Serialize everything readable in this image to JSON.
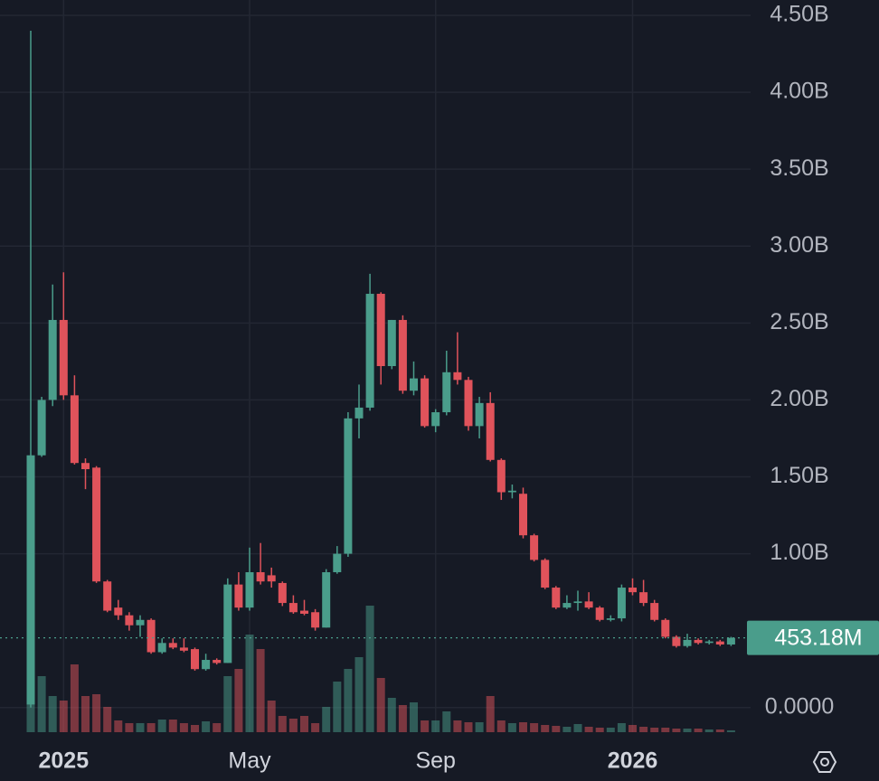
{
  "chart_data": {
    "type": "candlestick",
    "categories": [
      null,
      null,
      null,
      "2025",
      null,
      null,
      null,
      null,
      null,
      null,
      null,
      null,
      null,
      null,
      null,
      null,
      null,
      null,
      null,
      null,
      "May",
      null,
      null,
      null,
      null,
      null,
      null,
      null,
      null,
      null,
      null,
      null,
      null,
      null,
      null,
      null,
      null,
      "Sep",
      null,
      null,
      null,
      null,
      null,
      null,
      null,
      null,
      null,
      null,
      null,
      null,
      null,
      null,
      null,
      null,
      null,
      "2026",
      null,
      null,
      null,
      null,
      null,
      null,
      null,
      null,
      null
    ],
    "open": [
      0.02,
      1.64,
      2.0,
      2.52,
      2.03,
      1.59,
      1.56,
      0.82,
      0.65,
      0.6,
      0.535,
      0.57,
      0.36,
      0.42,
      0.39,
      0.38,
      0.25,
      0.31,
      0.29,
      0.8,
      0.65,
      0.88,
      0.86,
      0.81,
      0.68,
      0.63,
      0.62,
      0.52,
      0.88,
      1.0,
      1.88,
      1.95,
      2.69,
      2.22,
      2.52,
      2.06,
      2.14,
      1.83,
      1.92,
      2.18,
      2.13,
      1.83,
      1.98,
      1.61,
      1.4,
      1.39,
      1.12,
      0.96,
      0.78,
      0.65,
      0.68,
      0.69,
      0.65,
      0.57,
      0.58,
      0.78,
      0.75,
      0.68,
      0.57,
      0.46,
      0.4,
      0.44,
      0.42,
      0.43,
      0.41
    ],
    "high": [
      4.4,
      2.02,
      2.75,
      2.83,
      2.16,
      1.62,
      1.57,
      0.83,
      0.7,
      0.62,
      0.6,
      0.58,
      0.45,
      0.45,
      0.45,
      0.39,
      0.35,
      0.32,
      0.84,
      0.88,
      1.04,
      1.07,
      0.91,
      0.82,
      0.73,
      0.7,
      0.64,
      0.9,
      1.05,
      1.92,
      2.1,
      2.82,
      2.7,
      2.52,
      2.55,
      2.25,
      2.16,
      1.94,
      2.32,
      2.44,
      2.15,
      2.02,
      2.05,
      1.62,
      1.45,
      1.43,
      1.13,
      0.97,
      0.79,
      0.73,
      0.76,
      0.75,
      0.66,
      0.6,
      0.8,
      0.84,
      0.83,
      0.7,
      0.58,
      0.47,
      0.48,
      0.45,
      0.44,
      0.44,
      0.46
    ],
    "low": [
      0.0,
      1.63,
      1.96,
      2.0,
      1.58,
      1.42,
      0.81,
      0.62,
      0.57,
      0.5,
      0.46,
      0.35,
      0.35,
      0.38,
      0.36,
      0.24,
      0.24,
      0.28,
      0.29,
      0.63,
      0.63,
      0.8,
      0.78,
      0.66,
      0.61,
      0.6,
      0.5,
      0.52,
      0.87,
      0.98,
      1.75,
      1.93,
      2.1,
      2.2,
      2.04,
      2.03,
      1.82,
      1.79,
      1.9,
      2.1,
      1.8,
      1.75,
      1.6,
      1.35,
      1.36,
      1.1,
      0.95,
      0.77,
      0.64,
      0.64,
      0.63,
      0.64,
      0.56,
      0.56,
      0.56,
      0.73,
      0.66,
      0.56,
      0.45,
      0.39,
      0.39,
      0.41,
      0.41,
      0.4,
      0.4
    ],
    "close": [
      1.64,
      2.0,
      2.52,
      2.03,
      1.59,
      1.55,
      0.82,
      0.63,
      0.6,
      0.535,
      0.57,
      0.36,
      0.42,
      0.39,
      0.37,
      0.25,
      0.31,
      0.29,
      0.8,
      0.65,
      0.88,
      0.82,
      0.82,
      0.68,
      0.62,
      0.61,
      0.52,
      0.88,
      1.0,
      1.88,
      1.95,
      2.69,
      2.22,
      2.52,
      2.06,
      2.14,
      1.83,
      1.92,
      2.18,
      2.13,
      1.83,
      1.98,
      1.61,
      1.4,
      1.41,
      1.12,
      0.96,
      0.78,
      0.65,
      0.68,
      0.69,
      0.65,
      0.57,
      0.58,
      0.78,
      0.75,
      0.68,
      0.57,
      0.46,
      0.4,
      0.44,
      0.42,
      0.43,
      0.41,
      0.45318
    ],
    "volume": [
      148,
      62,
      40,
      35,
      75,
      40,
      42,
      28,
      13,
      10,
      10,
      10,
      14,
      14,
      10,
      8,
      12,
      10,
      62,
      70,
      108,
      92,
      35,
      18,
      15,
      18,
      10,
      28,
      56,
      70,
      83,
      140,
      60,
      38,
      30,
      33,
      13,
      13,
      23,
      13,
      11,
      11,
      40,
      13,
      10,
      11,
      10,
      8,
      7,
      6,
      9,
      6,
      5,
      5,
      10,
      8,
      6,
      5,
      5,
      4,
      4,
      4,
      3,
      3,
      2
    ],
    "up_color": "#4a9d8b",
    "down_color": "#e0535b",
    "ylim": [
      -0.16,
      4.6
    ],
    "yticks": [
      {
        "value": 0,
        "label": "0.0000"
      },
      {
        "value": 1,
        "label": "1.00B"
      },
      {
        "value": 1.5,
        "label": "1.50B"
      },
      {
        "value": 2,
        "label": "2.00B"
      },
      {
        "value": 2.5,
        "label": "2.50B"
      },
      {
        "value": 3,
        "label": "3.00B"
      },
      {
        "value": 3.5,
        "label": "3.50B"
      },
      {
        "value": 4,
        "label": "4.00B"
      },
      {
        "value": 4.5,
        "label": "4.50B"
      }
    ],
    "last_price": {
      "value": 0.45318,
      "label": "453.18M"
    },
    "grid": true
  }
}
